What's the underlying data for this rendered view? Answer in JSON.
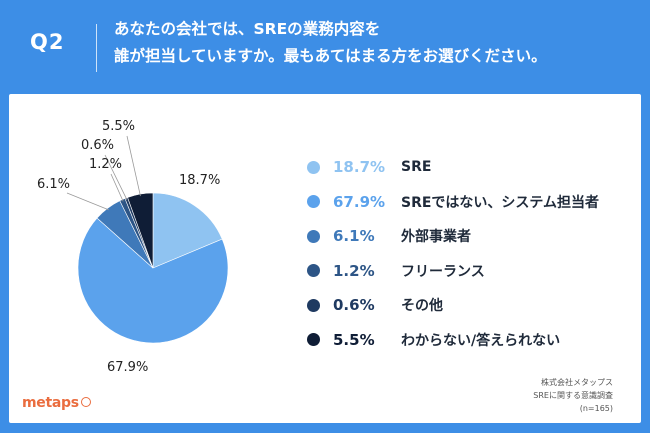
{
  "header": {
    "qnum": "Q2",
    "question_line1": "あなたの会社では、SREの業務内容を",
    "question_line2": "誰が担当していますか。最もあてはまる方をお選びください。"
  },
  "chart_data": {
    "type": "pie",
    "categories": [
      "SRE",
      "SREではない、システム担当者",
      "外部事業者",
      "フリーランス",
      "その他",
      "わからない/答えられない"
    ],
    "values": [
      18.7,
      67.9,
      6.1,
      1.2,
      0.6,
      5.5
    ],
    "slice_labels": [
      "18.7%",
      "67.9%",
      "6.1%",
      "1.2%",
      "0.6%",
      "5.5%"
    ],
    "colors": [
      "#8fc3f1",
      "#5ba2ec",
      "#3f79b9",
      "#2d5586",
      "#1f3a61",
      "#0f1d36"
    ],
    "legend_placement": "right"
  },
  "footer": {
    "logo_text": "metaps",
    "note_line1": "株式会社メタップス",
    "note_line2": "SREに関する意識調査",
    "note_line3": "(n=165)"
  }
}
